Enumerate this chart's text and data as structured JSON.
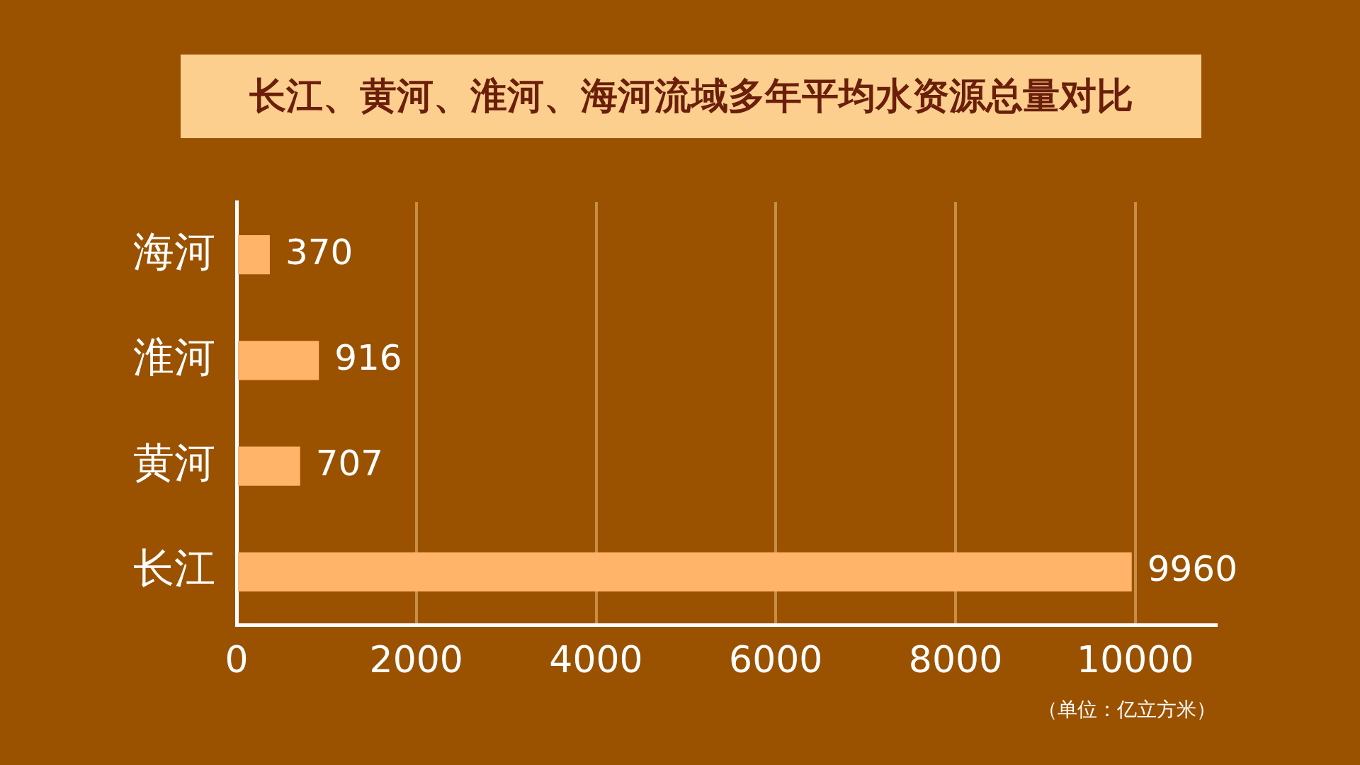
{
  "chart_data": {
    "type": "bar",
    "orientation": "horizontal",
    "title": "长江、黄河、淮河、海河流域多年平均水资源总量对比",
    "categories": [
      "海河",
      "淮河",
      "黄河",
      "长江"
    ],
    "values": [
      370,
      916,
      707,
      9960
    ],
    "color": "#ffb46a",
    "data_labels": true,
    "xlim": [
      0,
      10900
    ],
    "xticks": [
      0,
      2000,
      4000,
      6000,
      8000,
      10000
    ],
    "grid": "x",
    "legend": false,
    "annotations": [
      "（单位：亿立方米）"
    ]
  }
}
